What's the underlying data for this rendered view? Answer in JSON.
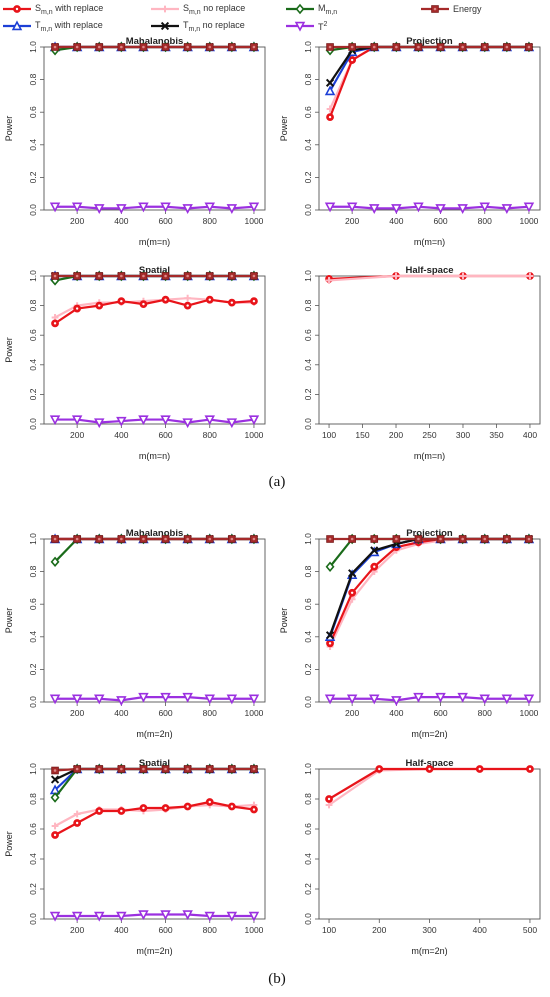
{
  "legend": [
    {
      "key": "s_with",
      "base": "S",
      "sub": "m,n",
      "sup": "",
      "suffix": " with replace",
      "color": "#e8141a",
      "marker": "circle"
    },
    {
      "key": "s_no",
      "base": "S",
      "sub": "m,n",
      "sup": "",
      "suffix": " no replace",
      "color": "#ffb6c1",
      "marker": "plus"
    },
    {
      "key": "m",
      "base": "M",
      "sub": "m,n",
      "sup": "",
      "suffix": "",
      "color": "#1a6b1a",
      "marker": "diamond"
    },
    {
      "key": "energy",
      "base": "Energy",
      "sub": "",
      "sup": "",
      "suffix": "",
      "color": "#a52a2a",
      "marker": "square"
    },
    {
      "key": "t_with",
      "base": "T",
      "sub": "m,n",
      "sup": "",
      "suffix": " with replace",
      "color": "#1c3fd6",
      "marker": "triangle"
    },
    {
      "key": "t_no",
      "base": "T",
      "sub": "m,n",
      "sup": "",
      "suffix": " no replace",
      "color": "#111111",
      "marker": "cross"
    },
    {
      "key": "t2",
      "base": "T",
      "sub": "",
      "sup": "2",
      "suffix": "",
      "color": "#9b30e0",
      "marker": "tridown"
    }
  ],
  "captions": [
    "(a)",
    "(b)"
  ],
  "chart_data": [
    {
      "type": "line",
      "title": "Mahalanobis",
      "xlabel": "m(m=n)",
      "ylabel": "Power",
      "xlim": [
        50,
        1050
      ],
      "ylim": [
        0,
        1
      ],
      "xticks": [
        200,
        400,
        600,
        800,
        1000
      ],
      "yticks": [
        0.0,
        0.2,
        0.4,
        0.6,
        0.8,
        1.0
      ],
      "x": [
        100,
        200,
        300,
        400,
        500,
        600,
        700,
        800,
        900,
        1000
      ],
      "series": [
        {
          "key": "t_no",
          "values": [
            1,
            1,
            1,
            1,
            1,
            1,
            1,
            1,
            1,
            1
          ]
        },
        {
          "key": "s_no",
          "values": [
            1,
            1,
            1,
            1,
            1,
            1,
            1,
            1,
            1,
            1
          ]
        },
        {
          "key": "s_with",
          "values": [
            1,
            1,
            1,
            1,
            1,
            1,
            1,
            1,
            1,
            1
          ]
        },
        {
          "key": "t_with",
          "values": [
            1,
            1,
            1,
            1,
            1,
            1,
            1,
            1,
            1,
            1
          ]
        },
        {
          "key": "m",
          "values": [
            0.98,
            1,
            1,
            1,
            1,
            1,
            1,
            1,
            1,
            1
          ]
        },
        {
          "key": "energy",
          "values": [
            1,
            1,
            1,
            1,
            1,
            1,
            1,
            1,
            1,
            1
          ]
        },
        {
          "key": "t2",
          "values": [
            0.02,
            0.02,
            0.01,
            0.01,
            0.02,
            0.02,
            0.01,
            0.02,
            0.01,
            0.02
          ]
        }
      ]
    },
    {
      "type": "line",
      "title": "Projection",
      "xlabel": "m(m=n)",
      "ylabel": "Power",
      "xlim": [
        50,
        1050
      ],
      "ylim": [
        0,
        1
      ],
      "xticks": [
        200,
        400,
        600,
        800,
        1000
      ],
      "yticks": [
        0.0,
        0.2,
        0.4,
        0.6,
        0.8,
        1.0
      ],
      "x": [
        100,
        200,
        300,
        400,
        500,
        600,
        700,
        800,
        900,
        1000
      ],
      "series": [
        {
          "key": "s_no",
          "values": [
            0.62,
            0.92,
            1,
            1,
            1,
            1,
            1,
            1,
            1,
            1
          ]
        },
        {
          "key": "s_with",
          "values": [
            0.57,
            0.92,
            1,
            1,
            1,
            1,
            1,
            1,
            1,
            1
          ]
        },
        {
          "key": "t_with",
          "values": [
            0.73,
            0.97,
            1,
            1,
            1,
            1,
            1,
            1,
            1,
            1
          ]
        },
        {
          "key": "t_no",
          "values": [
            0.78,
            0.98,
            1,
            1,
            1,
            1,
            1,
            1,
            1,
            1
          ]
        },
        {
          "key": "m",
          "values": [
            0.98,
            1,
            1,
            1,
            1,
            1,
            1,
            1,
            1,
            1
          ]
        },
        {
          "key": "energy",
          "values": [
            1,
            1,
            1,
            1,
            1,
            1,
            1,
            1,
            1,
            1
          ]
        },
        {
          "key": "t2",
          "values": [
            0.02,
            0.02,
            0.01,
            0.01,
            0.02,
            0.01,
            0.01,
            0.02,
            0.01,
            0.02
          ]
        }
      ]
    },
    {
      "type": "line",
      "title": "Spatial",
      "xlabel": "m(m=n)",
      "ylabel": "Power",
      "xlim": [
        50,
        1050
      ],
      "ylim": [
        0,
        1
      ],
      "xticks": [
        200,
        400,
        600,
        800,
        1000
      ],
      "yticks": [
        0.0,
        0.2,
        0.4,
        0.6,
        0.8,
        1.0
      ],
      "x": [
        100,
        200,
        300,
        400,
        500,
        600,
        700,
        800,
        900,
        1000
      ],
      "series": [
        {
          "key": "t_no",
          "values": [
            1,
            1,
            1,
            1,
            1,
            1,
            1,
            1,
            1,
            1
          ]
        },
        {
          "key": "t_with",
          "values": [
            1,
            1,
            1,
            1,
            1,
            1,
            1,
            1,
            1,
            1
          ]
        },
        {
          "key": "s_no",
          "values": [
            0.72,
            0.8,
            0.82,
            0.82,
            0.83,
            0.84,
            0.85,
            0.84,
            0.82,
            0.82
          ]
        },
        {
          "key": "s_with",
          "values": [
            0.68,
            0.78,
            0.8,
            0.83,
            0.81,
            0.84,
            0.8,
            0.84,
            0.82,
            0.83
          ]
        },
        {
          "key": "m",
          "values": [
            0.97,
            1,
            1,
            1,
            1,
            1,
            1,
            1,
            1,
            1
          ]
        },
        {
          "key": "energy",
          "values": [
            1,
            1,
            1,
            1,
            1,
            1,
            1,
            1,
            1,
            1
          ]
        },
        {
          "key": "t2",
          "values": [
            0.03,
            0.03,
            0.01,
            0.02,
            0.03,
            0.03,
            0.01,
            0.03,
            0.01,
            0.03
          ]
        }
      ]
    },
    {
      "type": "line",
      "title": "Half-space",
      "xlabel": "m(m=n)",
      "ylabel": "",
      "xlim": [
        85,
        415
      ],
      "ylim": [
        0,
        1
      ],
      "xticks": [
        100,
        150,
        200,
        250,
        300,
        350,
        400
      ],
      "yticks": [
        0.0,
        0.2,
        0.4,
        0.6,
        0.8,
        1.0
      ],
      "x": [
        100,
        200,
        300,
        400
      ],
      "series": [
        {
          "key": "s_with",
          "values": [
            0.98,
            1,
            1,
            1
          ]
        },
        {
          "key": "s_no",
          "values": [
            0.97,
            1,
            1,
            1
          ]
        }
      ]
    },
    {
      "type": "line",
      "title": "Mahalanobis",
      "xlabel": "m(m=2n)",
      "ylabel": "Power",
      "xlim": [
        50,
        1050
      ],
      "ylim": [
        0,
        1
      ],
      "xticks": [
        200,
        400,
        600,
        800,
        1000
      ],
      "yticks": [
        0.0,
        0.2,
        0.4,
        0.6,
        0.8,
        1.0
      ],
      "x": [
        100,
        200,
        300,
        400,
        500,
        600,
        700,
        800,
        900,
        1000
      ],
      "series": [
        {
          "key": "t_no",
          "values": [
            1,
            1,
            1,
            1,
            1,
            1,
            1,
            1,
            1,
            1
          ]
        },
        {
          "key": "t_with",
          "values": [
            1,
            1,
            1,
            1,
            1,
            1,
            1,
            1,
            1,
            1
          ]
        },
        {
          "key": "s_no",
          "values": [
            1,
            1,
            1,
            1,
            1,
            1,
            1,
            1,
            1,
            1
          ]
        },
        {
          "key": "s_with",
          "values": [
            1,
            1,
            1,
            1,
            1,
            1,
            1,
            1,
            1,
            1
          ]
        },
        {
          "key": "m",
          "values": [
            0.86,
            1,
            1,
            1,
            1,
            1,
            1,
            1,
            1,
            1
          ]
        },
        {
          "key": "energy",
          "values": [
            1,
            1,
            1,
            1,
            1,
            1,
            1,
            1,
            1,
            1
          ]
        },
        {
          "key": "t2",
          "values": [
            0.02,
            0.02,
            0.02,
            0.01,
            0.03,
            0.03,
            0.03,
            0.02,
            0.02,
            0.02
          ]
        }
      ]
    },
    {
      "type": "line",
      "title": "Projection",
      "xlabel": "m(m=2n)",
      "ylabel": "Power",
      "xlim": [
        50,
        1050
      ],
      "ylim": [
        0,
        1
      ],
      "xticks": [
        200,
        400,
        600,
        800,
        1000
      ],
      "yticks": [
        0.0,
        0.2,
        0.4,
        0.6,
        0.8,
        1.0
      ],
      "x": [
        100,
        200,
        300,
        400,
        500,
        600,
        700,
        800,
        900,
        1000
      ],
      "series": [
        {
          "key": "s_no",
          "values": [
            0.34,
            0.63,
            0.8,
            0.93,
            0.97,
            0.99,
            1,
            1,
            1,
            1
          ]
        },
        {
          "key": "s_with",
          "values": [
            0.36,
            0.67,
            0.83,
            0.95,
            0.98,
            1,
            1,
            1,
            1,
            1
          ]
        },
        {
          "key": "t_with",
          "values": [
            0.4,
            0.78,
            0.92,
            0.97,
            1,
            1,
            1,
            1,
            1,
            1
          ]
        },
        {
          "key": "t_no",
          "values": [
            0.41,
            0.79,
            0.93,
            0.97,
            1,
            1,
            1,
            1,
            1,
            1
          ]
        },
        {
          "key": "m",
          "values": [
            0.83,
            1,
            1,
            1,
            1,
            1,
            1,
            1,
            1,
            1
          ]
        },
        {
          "key": "energy",
          "values": [
            1,
            1,
            1,
            1,
            1,
            1,
            1,
            1,
            1,
            1
          ]
        },
        {
          "key": "t2",
          "values": [
            0.02,
            0.02,
            0.02,
            0.01,
            0.03,
            0.03,
            0.03,
            0.02,
            0.02,
            0.02
          ]
        }
      ]
    },
    {
      "type": "line",
      "title": "Spatial",
      "xlabel": "m(m=2n)",
      "ylabel": "Power",
      "xlim": [
        50,
        1050
      ],
      "ylim": [
        0,
        1
      ],
      "xticks": [
        200,
        400,
        600,
        800,
        1000
      ],
      "yticks": [
        0.0,
        0.2,
        0.4,
        0.6,
        0.8,
        1.0
      ],
      "x": [
        100,
        200,
        300,
        400,
        500,
        600,
        700,
        800,
        900,
        1000
      ],
      "series": [
        {
          "key": "s_no",
          "values": [
            0.62,
            0.7,
            0.73,
            0.73,
            0.72,
            0.73,
            0.75,
            0.76,
            0.75,
            0.76
          ]
        },
        {
          "key": "s_with",
          "values": [
            0.56,
            0.64,
            0.72,
            0.72,
            0.74,
            0.74,
            0.75,
            0.78,
            0.75,
            0.73
          ]
        },
        {
          "key": "t_with",
          "values": [
            0.86,
            1,
            1,
            1,
            1,
            1,
            1,
            1,
            1,
            1
          ]
        },
        {
          "key": "t_no",
          "values": [
            0.93,
            1,
            1,
            1,
            1,
            1,
            1,
            1,
            1,
            1
          ]
        },
        {
          "key": "m",
          "values": [
            0.81,
            1,
            1,
            1,
            1,
            1,
            1,
            1,
            1,
            1
          ]
        },
        {
          "key": "energy",
          "values": [
            0.99,
            1,
            1,
            1,
            1,
            1,
            1,
            1,
            1,
            1
          ]
        },
        {
          "key": "t2",
          "values": [
            0.02,
            0.02,
            0.02,
            0.02,
            0.03,
            0.03,
            0.03,
            0.02,
            0.02,
            0.02
          ]
        }
      ]
    },
    {
      "type": "line",
      "title": "Half-space",
      "xlabel": "m(m=2n)",
      "ylabel": "",
      "xlim": [
        80,
        520
      ],
      "ylim": [
        0,
        1
      ],
      "xticks": [
        100,
        200,
        300,
        400,
        500
      ],
      "yticks": [
        0.0,
        0.2,
        0.4,
        0.6,
        0.8,
        1.0
      ],
      "x": [
        100,
        200,
        300,
        400,
        500
      ],
      "series": [
        {
          "key": "s_no",
          "values": [
            0.76,
            0.99,
            1,
            1,
            1
          ]
        },
        {
          "key": "s_with",
          "values": [
            0.8,
            1,
            1,
            1,
            1
          ]
        }
      ]
    }
  ]
}
